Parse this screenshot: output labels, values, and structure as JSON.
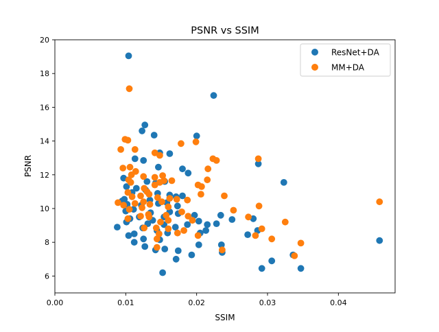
{
  "chart_data": {
    "type": "scatter",
    "title": "PSNR vs SSIM",
    "xlabel": "SSIM",
    "ylabel": "PSNR",
    "xlim": [
      0.0,
      0.048
    ],
    "ylim": [
      5,
      20
    ],
    "xticks": [
      0.0,
      0.01,
      0.02,
      0.03,
      0.04
    ],
    "xtick_labels": [
      "0.00",
      "0.01",
      "0.02",
      "0.03",
      "0.04"
    ],
    "yticks": [
      6,
      8,
      10,
      12,
      14,
      16,
      18,
      20
    ],
    "ytick_labels": [
      "6",
      "8",
      "10",
      "12",
      "14",
      "16",
      "18",
      "20"
    ],
    "grid": false,
    "legend_position": "top-right",
    "series": [
      {
        "name": "ResNet+DA",
        "color": "#1f77b4",
        "points": [
          [
            0.0104,
            19.05
          ],
          [
            0.0224,
            16.7
          ],
          [
            0.0127,
            14.95
          ],
          [
            0.0123,
            14.6
          ],
          [
            0.014,
            14.35
          ],
          [
            0.02,
            14.3
          ],
          [
            0.0113,
            12.95
          ],
          [
            0.0125,
            12.85
          ],
          [
            0.0148,
            13.3
          ],
          [
            0.0162,
            13.25
          ],
          [
            0.0146,
            12.45
          ],
          [
            0.018,
            12.35
          ],
          [
            0.0188,
            12.1
          ],
          [
            0.0097,
            11.8
          ],
          [
            0.013,
            11.6
          ],
          [
            0.0155,
            11.6
          ],
          [
            0.0142,
            11.5
          ],
          [
            0.0323,
            11.55
          ],
          [
            0.0287,
            12.65
          ],
          [
            0.0101,
            11.3
          ],
          [
            0.0115,
            11.2
          ],
          [
            0.0128,
            11.1
          ],
          [
            0.0109,
            10.95
          ],
          [
            0.0145,
            10.9
          ],
          [
            0.0162,
            10.8
          ],
          [
            0.0171,
            10.7
          ],
          [
            0.018,
            10.75
          ],
          [
            0.0098,
            10.55
          ],
          [
            0.0134,
            10.5
          ],
          [
            0.0158,
            10.35
          ],
          [
            0.0146,
            10.3
          ],
          [
            0.0122,
            10.2
          ],
          [
            0.0102,
            10.25
          ],
          [
            0.0095,
            10.45
          ],
          [
            0.0173,
            10.15
          ],
          [
            0.0111,
            9.95
          ],
          [
            0.01,
            9.85
          ],
          [
            0.0162,
            9.8
          ],
          [
            0.0135,
            9.75
          ],
          [
            0.0174,
            9.7
          ],
          [
            0.0197,
            9.6
          ],
          [
            0.0234,
            9.6
          ],
          [
            0.025,
            9.35
          ],
          [
            0.028,
            9.4
          ],
          [
            0.0119,
            9.5
          ],
          [
            0.0154,
            9.5
          ],
          [
            0.0106,
            9.4
          ],
          [
            0.0138,
            9.3
          ],
          [
            0.0203,
            9.25
          ],
          [
            0.0101,
            9.2
          ],
          [
            0.0131,
            9.1
          ],
          [
            0.0154,
            9.05
          ],
          [
            0.0187,
            9.05
          ],
          [
            0.0215,
            9.05
          ],
          [
            0.0228,
            9.1
          ],
          [
            0.0088,
            8.9
          ],
          [
            0.017,
            8.9
          ],
          [
            0.0124,
            8.85
          ],
          [
            0.0144,
            8.7
          ],
          [
            0.0159,
            8.55
          ],
          [
            0.0205,
            8.55
          ],
          [
            0.0112,
            8.5
          ],
          [
            0.0125,
            8.2
          ],
          [
            0.0148,
            8.15
          ],
          [
            0.0104,
            8.4
          ],
          [
            0.0213,
            8.7
          ],
          [
            0.0286,
            8.7
          ],
          [
            0.0272,
            8.45
          ],
          [
            0.0112,
            8.0
          ],
          [
            0.0203,
            7.85
          ],
          [
            0.0235,
            7.85
          ],
          [
            0.0127,
            7.75
          ],
          [
            0.0142,
            7.55
          ],
          [
            0.0174,
            7.5
          ],
          [
            0.0155,
            7.6
          ],
          [
            0.0236,
            7.4
          ],
          [
            0.0336,
            7.25
          ],
          [
            0.0193,
            7.25
          ],
          [
            0.0171,
            7.0
          ],
          [
            0.0306,
            6.9
          ],
          [
            0.0292,
            6.45
          ],
          [
            0.0347,
            6.45
          ],
          [
            0.0152,
            6.2
          ],
          [
            0.0458,
            8.1
          ]
        ]
      },
      {
        "name": "MM+DA",
        "color": "#ff7f0e",
        "points": [
          [
            0.0105,
            17.1
          ],
          [
            0.0099,
            14.1
          ],
          [
            0.0103,
            14.05
          ],
          [
            0.0093,
            13.5
          ],
          [
            0.0113,
            13.5
          ],
          [
            0.0141,
            13.3
          ],
          [
            0.0148,
            13.15
          ],
          [
            0.0199,
            13.95
          ],
          [
            0.0178,
            13.85
          ],
          [
            0.0223,
            12.95
          ],
          [
            0.0228,
            12.85
          ],
          [
            0.0287,
            12.95
          ],
          [
            0.0096,
            12.4
          ],
          [
            0.0106,
            12.45
          ],
          [
            0.0114,
            12.2
          ],
          [
            0.0108,
            12.0
          ],
          [
            0.0125,
            11.9
          ],
          [
            0.0141,
            11.85
          ],
          [
            0.0152,
            11.95
          ],
          [
            0.0104,
            11.7
          ],
          [
            0.0107,
            11.55
          ],
          [
            0.0141,
            11.4
          ],
          [
            0.0148,
            11.55
          ],
          [
            0.0154,
            11.65
          ],
          [
            0.0165,
            11.65
          ],
          [
            0.0202,
            11.4
          ],
          [
            0.0207,
            11.3
          ],
          [
            0.0215,
            11.7
          ],
          [
            0.0216,
            12.35
          ],
          [
            0.0126,
            11.2
          ],
          [
            0.013,
            11.0
          ],
          [
            0.0103,
            10.95
          ],
          [
            0.0109,
            10.7
          ],
          [
            0.0121,
            10.75
          ],
          [
            0.0133,
            10.85
          ],
          [
            0.0145,
            10.65
          ],
          [
            0.0162,
            10.6
          ],
          [
            0.0172,
            10.55
          ],
          [
            0.0206,
            10.85
          ],
          [
            0.0239,
            10.75
          ],
          [
            0.0089,
            10.35
          ],
          [
            0.0097,
            10.2
          ],
          [
            0.0113,
            10.3
          ],
          [
            0.0125,
            10.4
          ],
          [
            0.0134,
            10.25
          ],
          [
            0.0151,
            10.4
          ],
          [
            0.0187,
            10.5
          ],
          [
            0.0123,
            10.05
          ],
          [
            0.016,
            10.1
          ],
          [
            0.0105,
            9.95
          ],
          [
            0.0252,
            9.9
          ],
          [
            0.0288,
            10.15
          ],
          [
            0.0458,
            10.4
          ],
          [
            0.0179,
            9.8
          ],
          [
            0.0132,
            9.65
          ],
          [
            0.0121,
            9.55
          ],
          [
            0.0157,
            9.6
          ],
          [
            0.0133,
            9.5
          ],
          [
            0.0188,
            9.55
          ],
          [
            0.0103,
            9.4
          ],
          [
            0.016,
            9.3
          ],
          [
            0.0194,
            9.3
          ],
          [
            0.0149,
            9.2
          ],
          [
            0.0273,
            9.5
          ],
          [
            0.0325,
            9.2
          ],
          [
            0.0126,
            8.85
          ],
          [
            0.0143,
            8.85
          ],
          [
            0.016,
            8.8
          ],
          [
            0.0182,
            8.7
          ],
          [
            0.0173,
            8.55
          ],
          [
            0.0292,
            8.8
          ],
          [
            0.0147,
            8.5
          ],
          [
            0.0202,
            8.4
          ],
          [
            0.0283,
            8.4
          ],
          [
            0.0306,
            8.2
          ],
          [
            0.0144,
            8.2
          ],
          [
            0.0144,
            7.7
          ],
          [
            0.0236,
            7.55
          ],
          [
            0.0347,
            7.95
          ],
          [
            0.0338,
            7.2
          ]
        ]
      }
    ]
  }
}
